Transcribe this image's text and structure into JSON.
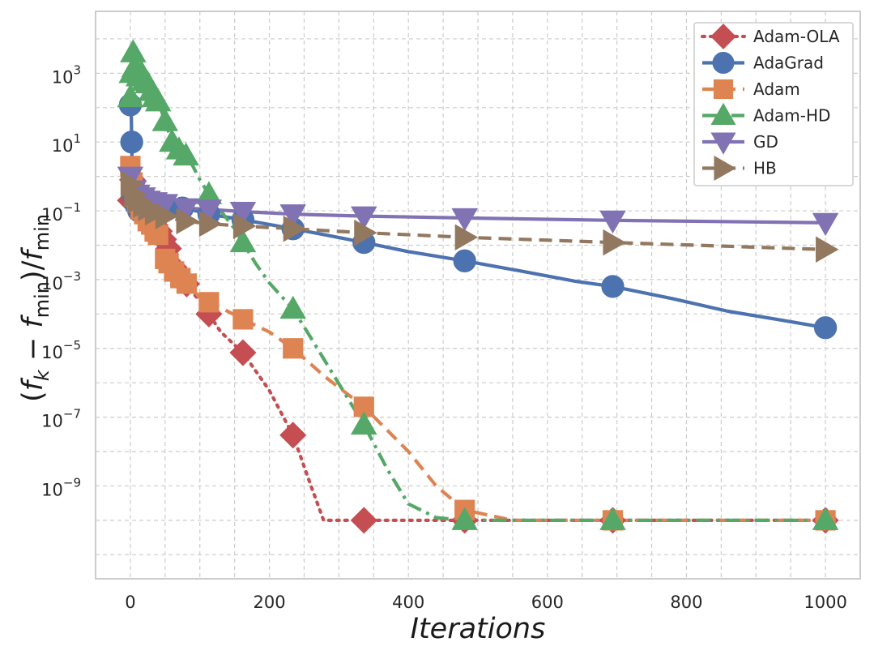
{
  "chart_data": {
    "type": "line",
    "xlabel": "Iterations",
    "ylabel": "(f_k − f_min)/f_min",
    "ylabel_parts": {
      "open": "(",
      "f1": "f",
      "sub1": "k",
      "minus": " − ",
      "f2": "f",
      "sub2": "min",
      "close": ")/",
      "f3": "f",
      "sub3": "min"
    },
    "xlim": [
      -50,
      1050
    ],
    "ylim_log10": [
      -11.7,
      4.8
    ],
    "yscale": "log",
    "x_ticks": [
      0,
      200,
      400,
      600,
      800,
      1000
    ],
    "x_tick_labels": [
      "0",
      "200",
      "400",
      "600",
      "800",
      "1000"
    ],
    "y_tick_exponents": [
      -9,
      -7,
      -5,
      -3,
      -1,
      1,
      3
    ],
    "y_tick_labels": [
      {
        "base": "10",
        "exp": "−9"
      },
      {
        "base": "10",
        "exp": "−7"
      },
      {
        "base": "10",
        "exp": "−5"
      },
      {
        "base": "10",
        "exp": "−3"
      },
      {
        "base": "10",
        "exp": "−1"
      },
      {
        "base": "10",
        "exp": "1"
      },
      {
        "base": "10",
        "exp": "3"
      }
    ],
    "grid": true,
    "legend_position": "top-right",
    "series": [
      {
        "name": "Adam-OLA",
        "color": "#c44e52",
        "dash": "dotted",
        "marker": "diamond",
        "x": [
          0,
          2,
          5,
          10,
          15,
          20,
          25,
          30,
          35,
          40,
          45,
          50,
          55,
          60,
          70,
          80,
          90,
          100,
          113,
          130,
          162,
          200,
          234,
          260,
          278,
          300,
          336,
          400,
          481,
          600,
          694,
          800,
          1000
        ],
        "y": [
          0.2,
          1.0,
          0.5,
          0.3,
          0.15,
          0.08,
          0.07,
          0.06,
          0.04,
          0.03,
          0.02,
          0.012,
          0.008,
          0.003,
          0.0012,
          0.0008,
          0.0004,
          0.00025,
          0.0001,
          3e-05,
          7.5e-06,
          6e-07,
          3e-08,
          1e-09,
          1e-10,
          1e-10,
          1e-10,
          1e-10,
          1e-10,
          1e-10,
          1e-10,
          1e-10,
          1e-10
        ],
        "marker_x": [
          0,
          3,
          7,
          12,
          16,
          20,
          24,
          28,
          32,
          36,
          42,
          48,
          55,
          63,
          72,
          81,
          113,
          162,
          234,
          336,
          481,
          694,
          1000
        ]
      },
      {
        "name": "AdaGrad",
        "color": "#4c72b0",
        "dash": "solid",
        "marker": "circle",
        "x": [
          0,
          1,
          2,
          3,
          5,
          8,
          12,
          18,
          25,
          35,
          50,
          60,
          75,
          90,
          113,
          140,
          162,
          200,
          234,
          280,
          336,
          400,
          481,
          560,
          640,
          694,
          780,
          860,
          930,
          1000
        ],
        "y": [
          120,
          150,
          10,
          0.5,
          0.25,
          0.15,
          0.1,
          0.13,
          0.14,
          0.15,
          0.14,
          0.13,
          0.12,
          0.105,
          0.08,
          0.065,
          0.055,
          0.04,
          0.03,
          0.02,
          0.012,
          0.0065,
          0.0035,
          0.0018,
          0.0009,
          0.00063,
          0.00028,
          0.00012,
          7e-05,
          4e-05
        ],
        "marker_x": [
          0,
          2,
          5,
          8,
          12,
          18,
          25,
          35,
          50,
          75,
          113,
          162,
          234,
          336,
          481,
          694,
          1000
        ]
      },
      {
        "name": "Adam",
        "color": "#dd8452",
        "dash": "dashed",
        "marker": "square",
        "x": [
          0,
          2,
          5,
          8,
          12,
          16,
          20,
          25,
          30,
          35,
          40,
          45,
          50,
          55,
          60,
          70,
          80,
          90,
          100,
          113,
          140,
          162,
          200,
          234,
          280,
          336,
          400,
          440,
          481,
          550,
          694,
          800,
          1000
        ],
        "y": [
          2.0,
          1.0,
          0.3,
          0.2,
          0.15,
          0.1,
          0.08,
          0.05,
          0.04,
          0.025,
          0.02,
          0.01,
          0.004,
          0.003,
          0.002,
          0.0012,
          0.0008,
          0.0005,
          0.0003,
          0.00022,
          0.00012,
          7e-05,
          3e-05,
          1e-05,
          1.5e-06,
          2e-07,
          1e-08,
          1e-09,
          2e-10,
          1e-10,
          1e-10,
          1e-10,
          1e-10
        ],
        "marker_x": [
          0,
          3,
          6,
          10,
          15,
          20,
          25,
          30,
          35,
          40,
          50,
          55,
          63,
          72,
          81,
          113,
          162,
          234,
          336,
          481,
          694,
          1000
        ]
      },
      {
        "name": "Adam-HD",
        "color": "#55a868",
        "dash": "dashdot",
        "marker": "triangle-up",
        "x": [
          0,
          2,
          4,
          6,
          8,
          12,
          16,
          20,
          25,
          30,
          35,
          40,
          50,
          60,
          70,
          80,
          90,
          100,
          113,
          130,
          150,
          162,
          180,
          200,
          234,
          260,
          290,
          336,
          370,
          400,
          440,
          481,
          600,
          694,
          800,
          1000
        ],
        "y": [
          200,
          1000,
          4000,
          1500,
          1200,
          800,
          1000,
          600,
          500,
          300,
          200,
          150,
          40,
          10,
          6,
          4,
          2,
          0.8,
          0.3,
          0.1,
          0.03,
          0.012,
          0.003,
          0.0008,
          0.00014,
          2e-05,
          2e-06,
          6e-08,
          3e-09,
          3e-10,
          1.2e-10,
          1e-10,
          1e-10,
          1e-10,
          1e-10,
          1e-10
        ],
        "marker_x": [
          0,
          2,
          4,
          6,
          8,
          12,
          16,
          20,
          25,
          30,
          35,
          40,
          50,
          60,
          70,
          80,
          113,
          162,
          234,
          336,
          481,
          694,
          1000
        ]
      },
      {
        "name": "GD",
        "color": "#8172b3",
        "dash": "solid",
        "marker": "triangle-down",
        "x": [
          0,
          5,
          10,
          18,
          25,
          35,
          50,
          60,
          80,
          113,
          162,
          234,
          336,
          481,
          694,
          1000
        ],
        "y": [
          1.0,
          0.4,
          0.3,
          0.25,
          0.2,
          0.18,
          0.16,
          0.14,
          0.12,
          0.11,
          0.095,
          0.08,
          0.07,
          0.062,
          0.053,
          0.045
        ],
        "marker_x": [
          0,
          5,
          10,
          18,
          25,
          35,
          50,
          80,
          113,
          162,
          234,
          336,
          481,
          694,
          1000
        ]
      },
      {
        "name": "HB",
        "color": "#937860",
        "dash": "dashed",
        "marker": "triangle-right",
        "x": [
          0,
          5,
          10,
          18,
          25,
          35,
          50,
          60,
          80,
          113,
          162,
          234,
          336,
          481,
          694,
          1000
        ],
        "y": [
          0.6,
          0.3,
          0.2,
          0.15,
          0.12,
          0.09,
          0.07,
          0.06,
          0.05,
          0.042,
          0.036,
          0.03,
          0.023,
          0.017,
          0.012,
          0.0075
        ],
        "marker_x": [
          0,
          5,
          10,
          18,
          25,
          35,
          50,
          80,
          113,
          162,
          234,
          336,
          481,
          694,
          1000
        ]
      }
    ],
    "colors": {
      "grid": "#cccccc",
      "frame": "#cccccc",
      "legend_border": "#cccccc"
    }
  }
}
